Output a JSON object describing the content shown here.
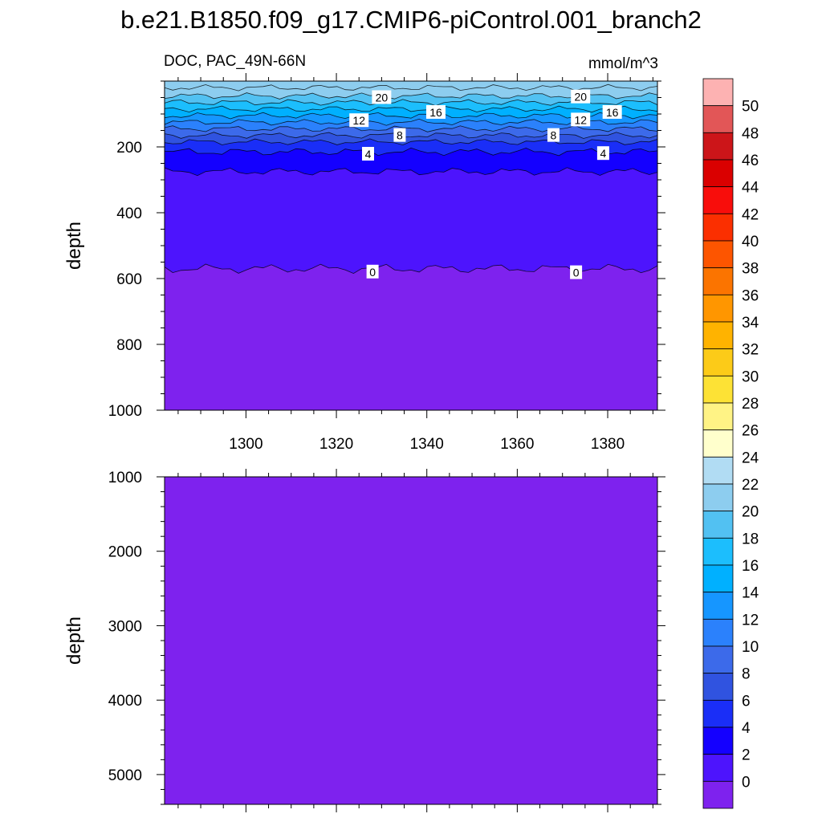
{
  "title": "b.e21.B1850.f09_g17.CMIP6-piControl.001_branch2",
  "left_subtitle": "DOC, PAC_49N-66N",
  "right_subtitle": "mmol/m^3",
  "chart_data": [
    {
      "type": "heatmap",
      "panel": "upper",
      "ylabel": "depth",
      "xlim": [
        1282,
        1391
      ],
      "ylim": [
        1000,
        0
      ],
      "x_ticks": [
        "1300",
        "1320",
        "1340",
        "1360",
        "1380"
      ],
      "y_ticks": [
        "200",
        "400",
        "600",
        "800",
        "1000"
      ],
      "contour_depths": [
        {
          "level": 22,
          "depth": 20
        },
        {
          "level": 20,
          "depth": 45
        },
        {
          "level": 18,
          "depth": 65
        },
        {
          "level": 16,
          "depth": 85
        },
        {
          "level": 14,
          "depth": 105
        },
        {
          "level": 12,
          "depth": 125
        },
        {
          "level": 10,
          "depth": 145
        },
        {
          "level": 8,
          "depth": 165
        },
        {
          "level": 6,
          "depth": 185
        },
        {
          "level": 4,
          "depth": 215
        },
        {
          "level": 2,
          "depth": 275
        },
        {
          "level": 0,
          "depth": 570
        }
      ],
      "contour_labels": [
        {
          "text": "20",
          "x": 1330,
          "depth": 50
        },
        {
          "text": "20",
          "x": 1374,
          "depth": 48
        },
        {
          "text": "16",
          "x": 1342,
          "depth": 95
        },
        {
          "text": "16",
          "x": 1381,
          "depth": 95
        },
        {
          "text": "12",
          "x": 1325,
          "depth": 120
        },
        {
          "text": "12",
          "x": 1374,
          "depth": 118
        },
        {
          "text": "8",
          "x": 1334,
          "depth": 165
        },
        {
          "text": "8",
          "x": 1368,
          "depth": 165
        },
        {
          "text": "4",
          "x": 1327,
          "depth": 222
        },
        {
          "text": "4",
          "x": 1379,
          "depth": 220
        },
        {
          "text": "0",
          "x": 1328,
          "depth": 580
        },
        {
          "text": "0",
          "x": 1373,
          "depth": 582
        }
      ]
    },
    {
      "type": "heatmap",
      "panel": "lower",
      "ylabel": "depth",
      "xlim": [
        1282,
        1391
      ],
      "ylim": [
        5400,
        1000
      ],
      "y_ticks": [
        "1000",
        "2000",
        "3000",
        "4000",
        "5000"
      ],
      "fill_level": 0
    }
  ],
  "colorbar": {
    "labels": [
      "50",
      "48",
      "46",
      "44",
      "42",
      "40",
      "38",
      "36",
      "34",
      "32",
      "30",
      "28",
      "26",
      "24",
      "22",
      "20",
      "18",
      "16",
      "14",
      "12",
      "10",
      "8",
      "6",
      "4",
      "2",
      "0"
    ],
    "colors": [
      "#fdb2b2",
      "#e25657",
      "#cc1519",
      "#da0000",
      "#f80d0b",
      "#fb2f00",
      "#fd5500",
      "#fb7400",
      "#ff9600",
      "#ffb300",
      "#fccb18",
      "#fde235",
      "#fff385",
      "#ffffcc",
      "#b1dcf3",
      "#8dcdef",
      "#52c1f2",
      "#1cbefd",
      "#00b0ff",
      "#1696ff",
      "#2b81fc",
      "#3c6aea",
      "#3053e0",
      "#1a2ef7",
      "#1400ff",
      "#4d14fd",
      "#7e22ee"
    ]
  }
}
